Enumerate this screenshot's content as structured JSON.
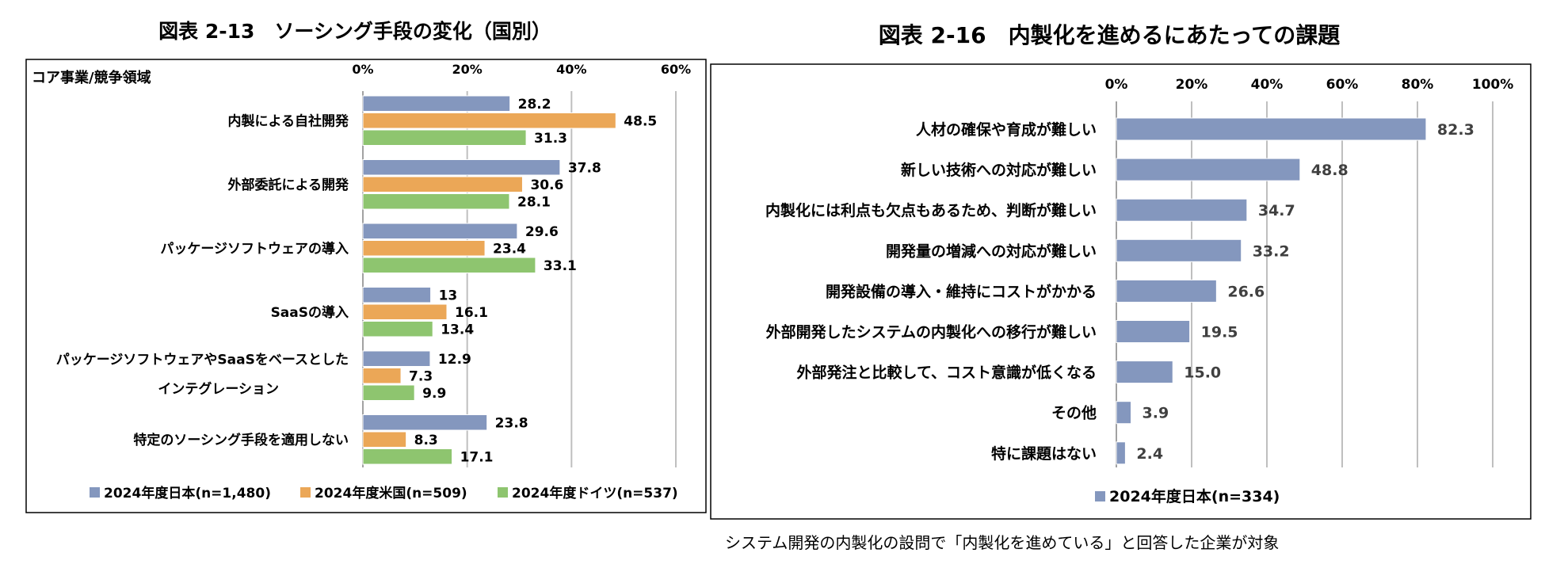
{
  "figures": {
    "left_title": "図表 2-13　ソーシング手段の変化（国別）",
    "right_title": "図表 2-16　内製化を進めるにあたっての課題",
    "right_note": "システム開発の内製化の設問で「内製化を進めている」と回答した企業が対象"
  },
  "colors": {
    "japan": "#8497BE",
    "usa": "#EBA757",
    "germany": "#8EC56F",
    "grid": "#BFBFBF",
    "border": "#000000"
  },
  "chart_data": [
    {
      "type": "bar",
      "orientation": "horizontal",
      "title": "図表 2-13　ソーシング手段の変化（国別）",
      "axis_title": "コア事業/競争領域",
      "xlim": [
        0,
        60
      ],
      "ticks": [
        "0%",
        "20%",
        "40%",
        "60%"
      ],
      "categories": [
        [
          "内製による自社開発"
        ],
        [
          "外部委託による開発"
        ],
        [
          "パッケージソフトウェアの導入"
        ],
        [
          "SaaSの導入"
        ],
        [
          "パッケージソフトウェアやSaaSをベースとした",
          "インテグレーション"
        ],
        [
          "特定のソーシング手段を適用しない"
        ]
      ],
      "series": [
        {
          "name": "2024年度日本(n=1,480)",
          "color_key": "japan",
          "values": [
            28.2,
            37.8,
            29.6,
            13,
            12.9,
            23.8
          ],
          "labels": [
            "28.2",
            "37.8",
            "29.6",
            "13",
            "12.9",
            "23.8"
          ]
        },
        {
          "name": "2024年度米国(n=509)",
          "color_key": "usa",
          "values": [
            48.5,
            30.6,
            23.4,
            16.1,
            7.3,
            8.3
          ],
          "labels": [
            "48.5",
            "30.6",
            "23.4",
            "16.1",
            "7.3",
            "8.3"
          ]
        },
        {
          "name": "2024年度ドイツ(n=537)",
          "color_key": "germany",
          "values": [
            31.3,
            28.1,
            33.1,
            13.4,
            9.9,
            17.1
          ],
          "labels": [
            "31.3",
            "28.1",
            "33.1",
            "13.4",
            "9.9",
            "17.1"
          ]
        }
      ],
      "legend": "bottom"
    },
    {
      "type": "bar",
      "orientation": "horizontal",
      "title": "図表 2-16　内製化を進めるにあたっての課題",
      "xlim": [
        0,
        100
      ],
      "ticks": [
        "0%",
        "20%",
        "40%",
        "60%",
        "80%",
        "100%"
      ],
      "categories": [
        "人材の確保や育成が難しい",
        "新しい技術への対応が難しい",
        "内製化には利点も欠点もあるため、判断が難しい",
        "開発量の増減への対応が難しい",
        "開発設備の導入・維持にコストがかかる",
        "外部開発したシステムの内製化への移行が難しい",
        "外部発注と比較して、コスト意識が低くなる",
        "その他",
        "特に課題はない"
      ],
      "series": [
        {
          "name": "2024年度日本(n=334)",
          "color_key": "japan",
          "values": [
            82.3,
            48.8,
            34.7,
            33.2,
            26.6,
            19.5,
            15.0,
            3.9,
            2.4
          ],
          "labels": [
            "82.3",
            "48.8",
            "34.7",
            "33.2",
            "26.6",
            "19.5",
            "15.0",
            "3.9",
            "2.4"
          ]
        }
      ],
      "legend": "bottom"
    }
  ]
}
